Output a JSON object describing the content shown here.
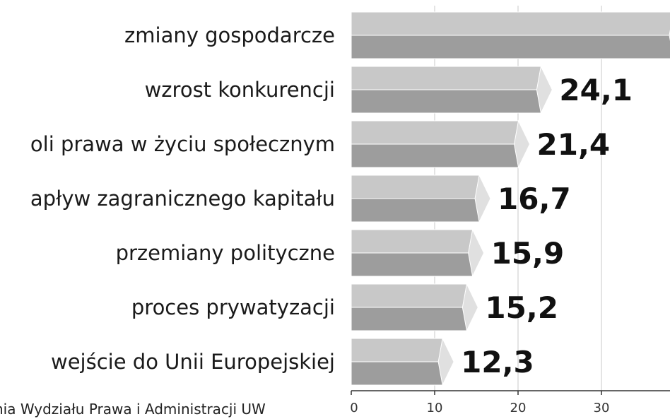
{
  "chart_data": {
    "type": "bar",
    "orientation": "horizontal",
    "categories": [
      "zmiany gospodarcze",
      "wzrost konkurencji",
      "oli prawa w życiu społecznym",
      "apływ zagranicznego kapitału",
      "przemiany polityczne",
      "proces prywatyzacji",
      "wejście do Unii Europejskiej"
    ],
    "values": [
      40,
      24.1,
      21.4,
      16.7,
      15.9,
      15.2,
      12.3
    ],
    "value_labels": [
      "",
      "24,1",
      "21,4",
      "16,7",
      "15,9",
      "15,2",
      "12,3"
    ],
    "xlim": [
      0,
      40
    ],
    "xticks": [
      0,
      10,
      20,
      30
    ],
    "xtick_labels": [
      "0",
      "10",
      "20",
      "30"
    ],
    "grid": true,
    "source_text": "nia Wydziału Prawa i Administracji UW"
  },
  "colors": {
    "bar_top": "#c8c8c8",
    "bar_bottom": "#9d9d9d",
    "bar_cap": "#e0e0e0",
    "grid": "#c9c9c9",
    "axis": "#333333"
  }
}
